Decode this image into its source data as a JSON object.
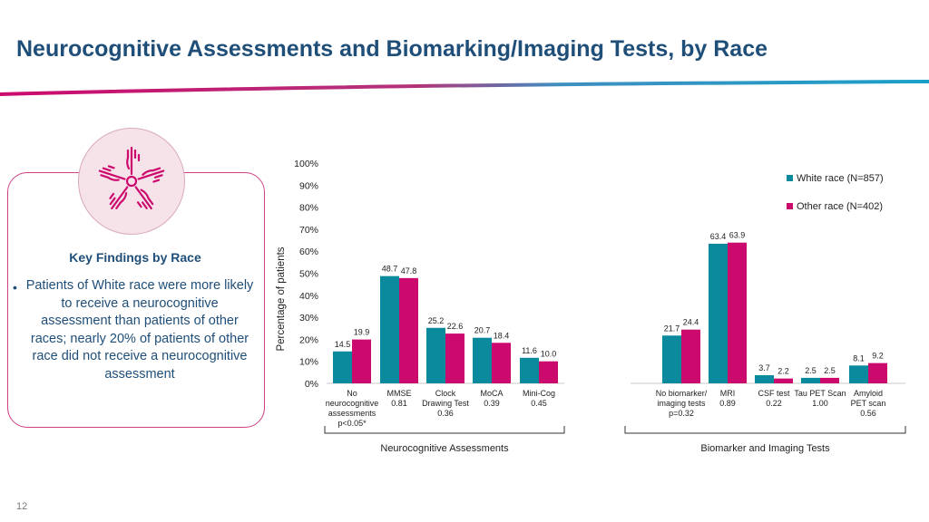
{
  "header": {
    "title": "Neurocognitive Assessments and Biomarking/Imaging Tests, by Race"
  },
  "colors": {
    "white_race": "#0b8a9e",
    "other_race": "#cc0a6e",
    "title": "#1f4e79",
    "swoosh_left": "#cc0a6e",
    "swoosh_right": "#1aa0c8"
  },
  "key_findings": {
    "title": "Key Findings by Race",
    "bullet": "Patients of White race were more likely to receive a neurocognitive assessment than patients of other races; nearly 20% of patients of other race did not receive a neurocognitive assessment",
    "icon": "hands-circle-icon"
  },
  "page_number": "12",
  "chart_data": {
    "type": "bar",
    "ylabel": "Percentage of patients",
    "ylim": [
      0,
      100
    ],
    "yticks": [
      "0%",
      "10%",
      "20%",
      "30%",
      "40%",
      "50%",
      "60%",
      "70%",
      "80%",
      "90%",
      "100%"
    ],
    "legend_position": "top-right",
    "series": [
      {
        "name": "White race (N=857)",
        "values": [
          14.5,
          48.7,
          25.2,
          20.7,
          11.6,
          21.7,
          63.4,
          3.7,
          2.5,
          8.1
        ],
        "labels": [
          "14.5",
          "48.7",
          "25.2",
          "20.7",
          "11.6",
          "21.7",
          "63.4",
          "3.7",
          "2.5",
          "8.1"
        ]
      },
      {
        "name": "Other race (N=402)",
        "values": [
          19.9,
          47.8,
          22.6,
          18.4,
          10.0,
          24.4,
          63.9,
          2.2,
          2.5,
          9.2
        ],
        "labels": [
          "19.9",
          "47.8",
          "22.6",
          "18.4",
          "10.0",
          "24.4",
          "63.9",
          "2.2",
          "2.5",
          "9.2"
        ]
      }
    ],
    "categories": [
      {
        "lines": [
          "No",
          "neurocognitive",
          "assessments",
          "p<0.05*"
        ]
      },
      {
        "lines": [
          "MMSE",
          "0.81"
        ]
      },
      {
        "lines": [
          "Clock",
          "Drawing Test",
          "0.36"
        ]
      },
      {
        "lines": [
          "MoCA",
          "0.39"
        ]
      },
      {
        "lines": [
          "Mini-Cog",
          "0.45"
        ]
      },
      {
        "lines": [
          "No biomarker/",
          "imaging tests",
          "p=0.32"
        ]
      },
      {
        "lines": [
          "MRI",
          "0.89"
        ]
      },
      {
        "lines": [
          "CSF test",
          "0.22"
        ]
      },
      {
        "lines": [
          "Tau PET Scan",
          "1.00"
        ]
      },
      {
        "lines": [
          "Amyloid",
          "PET scan",
          "0.56"
        ]
      }
    ],
    "groups": [
      {
        "label": "Neurocognitive Assessments",
        "from": 0,
        "to": 4
      },
      {
        "label": "Biomarker and Imaging Tests",
        "from": 5,
        "to": 9
      }
    ]
  }
}
